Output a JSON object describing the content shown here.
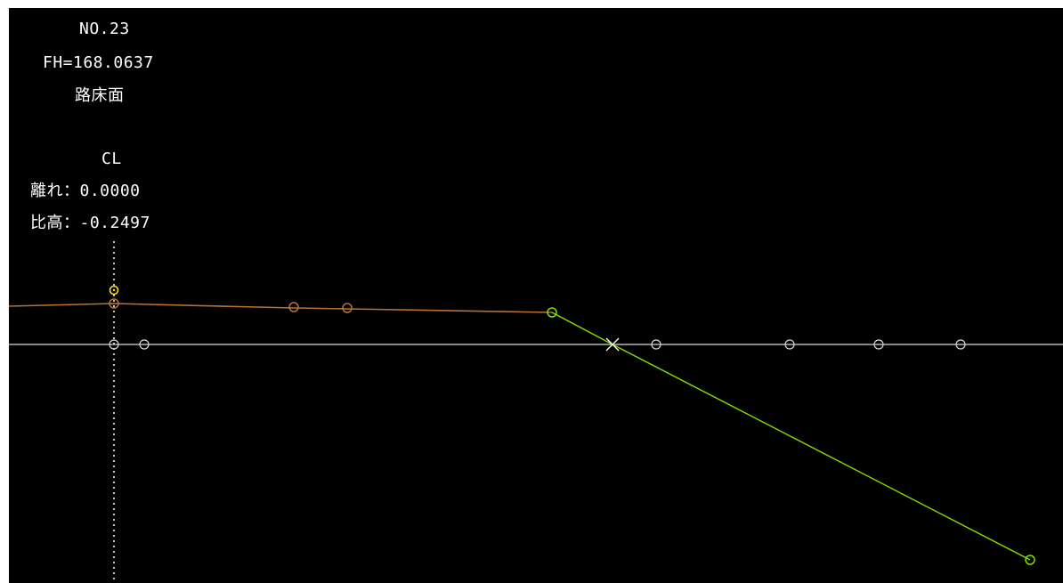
{
  "station": {
    "number": "NO.23",
    "fh": "FH=168.0637",
    "surface": "路床面"
  },
  "point_info": {
    "name": "CL",
    "offset_label": "離れ",
    "offset_value": "0.0000",
    "height_label": "比高",
    "height_value": "-0.2497",
    "separator": "："
  },
  "colors": {
    "background": "#000000",
    "text": "#ffffff",
    "ground_line": "#d8d8d8",
    "design_line": "#b87333",
    "slope_line": "#80e000",
    "selected_marker": "#ffe000",
    "cl_line": "#ffffff"
  }
}
